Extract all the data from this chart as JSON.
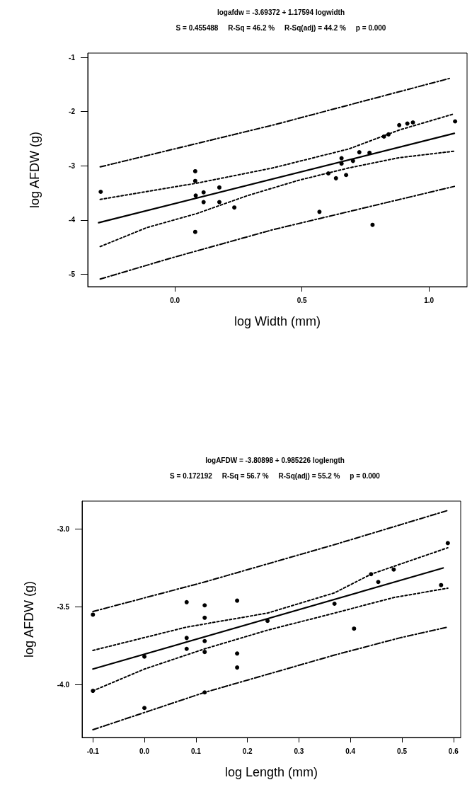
{
  "chart_data": [
    {
      "type": "scatter",
      "title": "logafdw = -3.69372 + 1.17594 logwidth",
      "subtitle": "S = 0.455488     R-Sq = 46.2 %     R-Sq(adj) = 44.2 %     p = 0.000",
      "xlabel": "log Width (mm)",
      "ylabel": "log AFDW (g)",
      "xlim": [
        -0.343,
        1.15
      ],
      "ylim": [
        -5.23,
        -0.92
      ],
      "xticks": [
        {
          "value": 0,
          "label": "0.0"
        },
        {
          "value": 0.5,
          "label": "0.5"
        },
        {
          "value": 1,
          "label": "1.0"
        }
      ],
      "yticks": [
        -5,
        -4,
        -3,
        -2,
        -1
      ],
      "grid": false,
      "series": [
        {
          "marker": "circle",
          "color": "#000000",
          "x": [
            -0.292,
            0.08,
            0.08,
            0.082,
            0.08,
            0.113,
            0.113,
            0.175,
            0.175,
            0.234,
            0.569,
            0.604,
            0.634,
            0.656,
            0.656,
            0.674,
            0.701,
            0.726,
            0.766,
            0.778,
            0.823,
            0.841,
            0.883,
            0.915,
            0.937,
            1.103
          ],
          "values": [
            -3.48,
            -3.1,
            -3.28,
            -3.55,
            -4.22,
            -3.49,
            -3.67,
            -3.4,
            -3.67,
            -3.77,
            -3.85,
            -3.14,
            -3.23,
            -2.86,
            -2.96,
            -3.17,
            -2.91,
            -2.75,
            -2.76,
            -4.09,
            -2.46,
            -2.42,
            -2.25,
            -2.22,
            -2.2,
            -2.18
          ]
        },
        {
          "type": "line",
          "marker": "none",
          "line_style": "solid",
          "color": "#000000",
          "x": [
            -0.3,
            1.1
          ],
          "values": [
            -4.05,
            -2.4
          ]
        },
        {
          "type": "line",
          "marker": "none",
          "line_style": "dotted",
          "color": "#000000",
          "x": [
            -0.294,
            0.087,
            0.385,
            0.684,
            0.883,
            1.1
          ],
          "values": [
            -3.62,
            -3.32,
            -3.04,
            -2.69,
            -2.34,
            -2.04
          ]
        },
        {
          "type": "line",
          "marker": "none",
          "line_style": "dotted",
          "color": "#000000",
          "x": [
            -0.294,
            -0.11,
            0.087,
            0.286,
            0.485,
            0.684,
            0.883,
            1.1
          ],
          "values": [
            -4.49,
            -4.14,
            -3.88,
            -3.55,
            -3.27,
            -3.04,
            -2.85,
            -2.73
          ]
        },
        {
          "type": "line",
          "marker": "none",
          "line_style": "dashed",
          "color": "#000000",
          "x": [
            -0.294,
            0.385,
            1.087
          ],
          "values": [
            -3.02,
            -2.25,
            -1.38
          ]
        },
        {
          "type": "line",
          "marker": "none",
          "line_style": "dashed",
          "color": "#000000",
          "x": [
            -0.294,
            -0.013,
            0.385,
            1.1
          ],
          "values": [
            -5.09,
            -4.7,
            -4.18,
            -3.38
          ]
        }
      ]
    },
    {
      "type": "scatter",
      "title": "logAFDW = -3.80898 + 0.985226 loglength",
      "subtitle": "S = 0.172192     R-Sq = 56.7 %     R-Sq(adj) = 55.2 %     p = 0.000",
      "xlabel": "log Length (mm)",
      "ylabel": "log AFDW (g)",
      "xlim": [
        -0.121,
        0.614
      ],
      "ylim": [
        -4.34,
        -2.82
      ],
      "xticks": [
        -0.1,
        {
          "value": 0,
          "label": "0.0"
        },
        0.1,
        0.2,
        0.3,
        0.4,
        0.5,
        0.6
      ],
      "yticks": [
        {
          "value": -4,
          "label": "-4.0"
        },
        -3.5,
        {
          "value": -3,
          "label": "-3.0"
        }
      ],
      "grid": false,
      "series": [
        {
          "marker": "circle",
          "color": "#000000",
          "x": [
            -0.1,
            -0.1,
            0.0,
            0.0,
            0.082,
            0.082,
            0.082,
            0.117,
            0.117,
            0.117,
            0.117,
            0.117,
            0.18,
            0.18,
            0.18,
            0.239,
            0.369,
            0.407,
            0.44,
            0.454,
            0.484,
            0.576,
            0.589
          ],
          "values": [
            -3.55,
            -4.04,
            -3.82,
            -4.15,
            -3.47,
            -3.7,
            -3.77,
            -3.49,
            -3.57,
            -3.72,
            -3.79,
            -4.05,
            -3.46,
            -3.8,
            -3.89,
            -3.59,
            -3.48,
            -3.64,
            -3.29,
            -3.34,
            -3.26,
            -3.36,
            -3.09
          ]
        },
        {
          "type": "line",
          "marker": "none",
          "line_style": "solid",
          "color": "#000000",
          "x": [
            -0.1,
            0.58
          ],
          "values": [
            -3.9,
            -3.25
          ]
        },
        {
          "type": "line",
          "marker": "none",
          "line_style": "dotted",
          "color": "#000000",
          "x": [
            -0.1,
            0.082,
            0.239,
            0.369,
            0.44,
            0.589
          ],
          "values": [
            -3.78,
            -3.63,
            -3.54,
            -3.41,
            -3.29,
            -3.12
          ]
        },
        {
          "type": "line",
          "marker": "none",
          "line_style": "dotted",
          "color": "#000000",
          "x": [
            -0.1,
            0.0,
            0.117,
            0.239,
            0.369,
            0.484,
            0.589
          ],
          "values": [
            -4.04,
            -3.9,
            -3.77,
            -3.65,
            -3.54,
            -3.44,
            -3.38
          ]
        },
        {
          "type": "line",
          "marker": "none",
          "line_style": "dashed",
          "color": "#000000",
          "x": [
            -0.1,
            0.117,
            0.369,
            0.589
          ],
          "values": [
            -3.53,
            -3.34,
            -3.1,
            -2.88
          ]
        },
        {
          "type": "line",
          "marker": "none",
          "line_style": "dashed",
          "color": "#000000",
          "x": [
            -0.1,
            0.117,
            0.369,
            0.495,
            0.589
          ],
          "values": [
            -4.29,
            -4.05,
            -3.81,
            -3.7,
            -3.63
          ]
        }
      ]
    }
  ]
}
